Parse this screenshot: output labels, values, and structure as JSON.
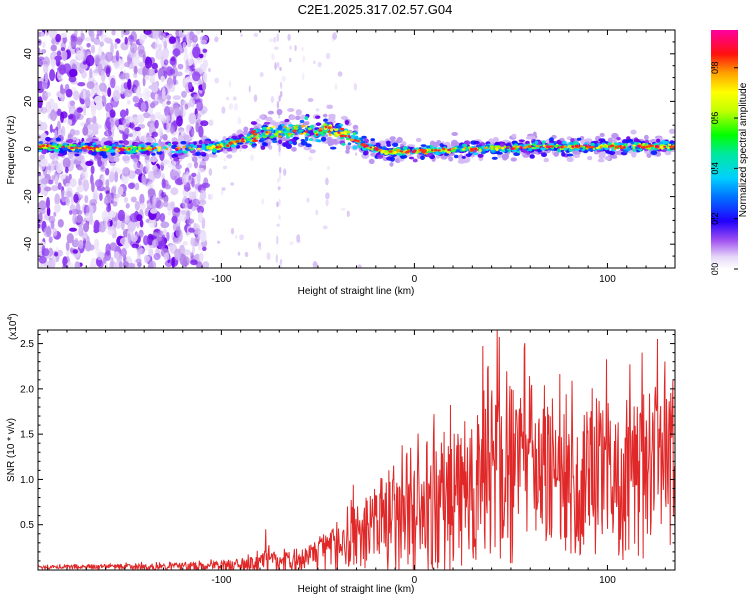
{
  "title": "C2E1.2025.317.02.57.G04",
  "chart_data": [
    {
      "type": "heatmap",
      "xlabel": "Height of straight line (km)",
      "ylabel": "Frequency (Hz)",
      "xlim": [
        -195,
        135
      ],
      "ylim": [
        -50,
        50
      ],
      "xticks": [
        -100,
        0,
        100
      ],
      "yticks": [
        -40,
        -20,
        0,
        20,
        40
      ],
      "colorbar": {
        "label": "Normalized spectral amplitude",
        "range": [
          0,
          0.95
        ],
        "ticks": [
          0.0,
          0.2,
          0.4,
          0.6,
          0.8
        ],
        "colors": [
          "#ffffff",
          "#c8a8f0",
          "#8000ff",
          "#0000ff",
          "#00c0ff",
          "#00e8a0",
          "#00ff00",
          "#c0ff00",
          "#ffff00",
          "#ffa000",
          "#ff0000",
          "#ff00a0"
        ]
      },
      "band_center": [
        {
          "x": -195,
          "y": 1
        },
        {
          "x": -150,
          "y": 0
        },
        {
          "x": -120,
          "y": 0
        },
        {
          "x": -100,
          "y": 1
        },
        {
          "x": -80,
          "y": 6
        },
        {
          "x": -60,
          "y": 8
        },
        {
          "x": -45,
          "y": 8
        },
        {
          "x": -35,
          "y": 6
        },
        {
          "x": -25,
          "y": 1
        },
        {
          "x": -15,
          "y": -1
        },
        {
          "x": 0,
          "y": -1
        },
        {
          "x": 30,
          "y": 0
        },
        {
          "x": 70,
          "y": 1
        },
        {
          "x": 100,
          "y": 1
        },
        {
          "x": 135,
          "y": 1
        }
      ],
      "noise_region": [
        -195,
        -108
      ]
    },
    {
      "type": "line",
      "xlabel": "Height of straight line (km)",
      "ylabel": "SNR (10 * v/v)",
      "y_scale_label": "(x10",
      "y_scale_exp": "4",
      "xlim": [
        -195,
        135
      ],
      "ylim": [
        0,
        26500
      ],
      "xticks": [
        -100,
        0,
        100
      ],
      "yticks": [
        0.5,
        1.0,
        1.5,
        2.0,
        2.5
      ],
      "ytick_multiplier": 10000,
      "series_color": "#e02828",
      "envelope": [
        {
          "x": -195,
          "mean": 300,
          "amp": 300
        },
        {
          "x": -110,
          "mean": 400,
          "amp": 700
        },
        {
          "x": -90,
          "mean": 500,
          "amp": 1200
        },
        {
          "x": -75,
          "mean": 900,
          "amp": 2200
        },
        {
          "x": -60,
          "mean": 900,
          "amp": 1500
        },
        {
          "x": -45,
          "mean": 2000,
          "amp": 3500
        },
        {
          "x": -30,
          "mean": 4000,
          "amp": 6000
        },
        {
          "x": -15,
          "mean": 5000,
          "amp": 8000
        },
        {
          "x": 0,
          "mean": 5000,
          "amp": 10000
        },
        {
          "x": 15,
          "mean": 7000,
          "amp": 12000
        },
        {
          "x": 35,
          "mean": 10000,
          "amp": 16000
        },
        {
          "x": 60,
          "mean": 11000,
          "amp": 15000
        },
        {
          "x": 90,
          "mean": 10000,
          "amp": 14000
        },
        {
          "x": 110,
          "mean": 10000,
          "amp": 14000
        },
        {
          "x": 135,
          "mean": 11000,
          "amp": 14000
        }
      ],
      "peaks": [
        {
          "x": -77,
          "y": 4500
        },
        {
          "x": -2,
          "y": 13500
        },
        {
          "x": 10,
          "y": 15000
        },
        {
          "x": 43,
          "y": 26500
        },
        {
          "x": 57,
          "y": 24500
        },
        {
          "x": 126,
          "y": 25500
        }
      ]
    }
  ]
}
